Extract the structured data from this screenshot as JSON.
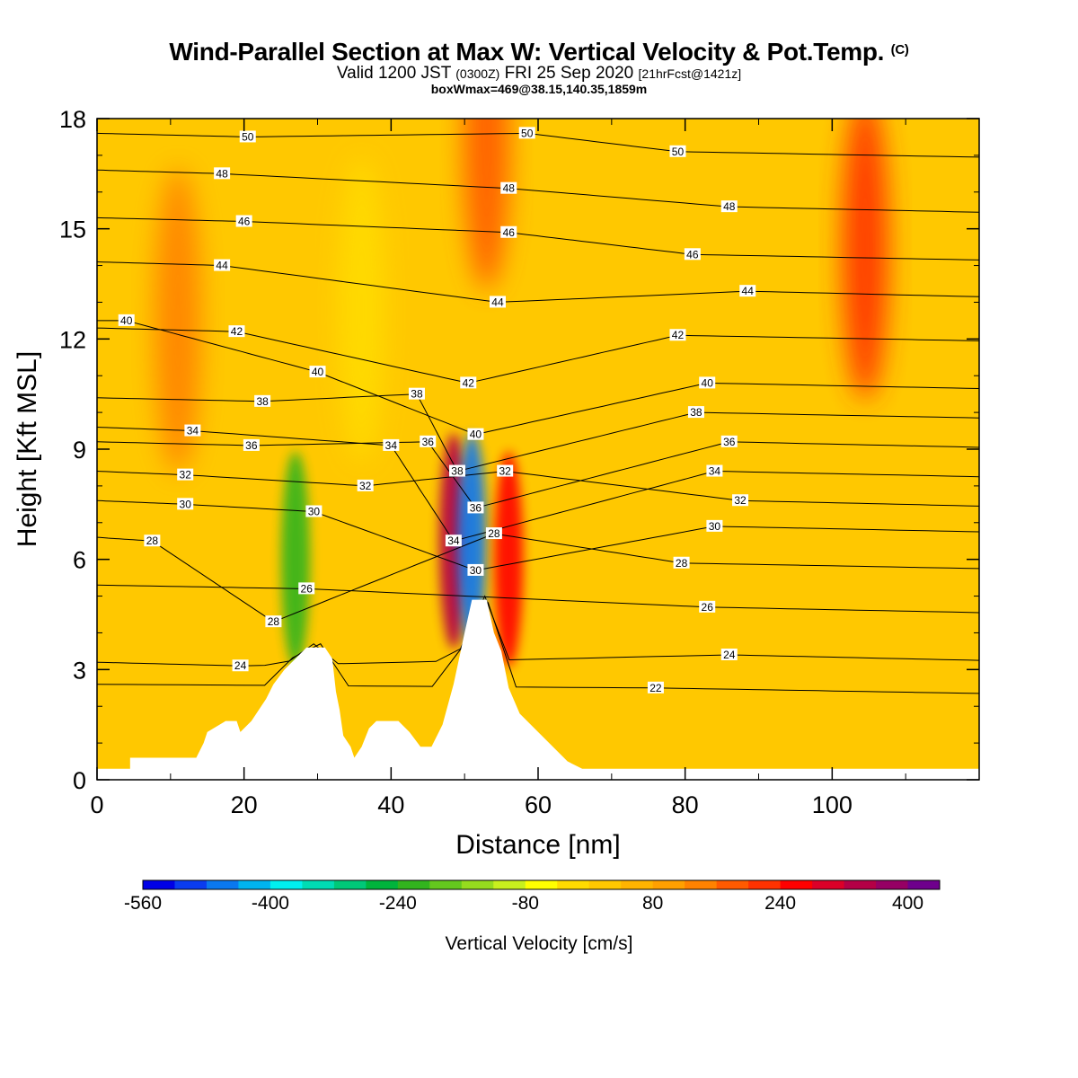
{
  "title": {
    "main": "Wind-Parallel Section at Max W: Vertical Velocity & Pot.Temp.",
    "copyright": "(C)",
    "valid_prefix": "Valid 1200 JST",
    "valid_z": "(0300Z)",
    "valid_date": "FRI 25 Sep 2020",
    "forecast": "[21hrFcst@1421z]",
    "box": "boxWmax=469@38.15,140.35,1859m"
  },
  "chart_data": {
    "type": "heatmap",
    "xlabel": "Distance [nm]",
    "ylabel": "Height [Kft MSL]",
    "xlim": [
      0,
      120
    ],
    "ylim": [
      0,
      18
    ],
    "x_ticks": [
      "0",
      "20",
      "40",
      "60",
      "80",
      "100"
    ],
    "y_ticks": [
      "0",
      "3",
      "6",
      "9",
      "12",
      "15",
      "18"
    ],
    "colorbar": {
      "label": "Vertical Velocity [cm/s]",
      "tick_labels": [
        "-560",
        "-400",
        "-240",
        "-80",
        "80",
        "240",
        "400"
      ],
      "levels": [
        -560,
        -520,
        -480,
        -440,
        -400,
        -360,
        -320,
        -280,
        -240,
        -200,
        -160,
        -120,
        -80,
        -40,
        0,
        40,
        80,
        120,
        160,
        200,
        240,
        280,
        320,
        360,
        400,
        440
      ],
      "colors": [
        "#0000e6",
        "#0a3cf0",
        "#0a78f0",
        "#00b4f0",
        "#00f0f0",
        "#00dcb4",
        "#00c878",
        "#00b43c",
        "#32b41e",
        "#64c81e",
        "#96dc1e",
        "#c8f01e",
        "#ffff00",
        "#ffdc00",
        "#ffc800",
        "#ffb400",
        "#ffa000",
        "#ff8200",
        "#ff5a00",
        "#ff3200",
        "#ff0000",
        "#dc0028",
        "#b40046",
        "#960064",
        "#6e008c"
      ]
    },
    "vertical_velocity_features": [
      {
        "x": 11,
        "y": 12.5,
        "w": 120
      },
      {
        "x": 27,
        "y": 6.0,
        "w": -240
      },
      {
        "x": 36,
        "y": 12.8,
        "w": -40
      },
      {
        "x": 48.5,
        "y": 6.5,
        "w": 320
      },
      {
        "x": 51,
        "y": 6.5,
        "w": -480
      },
      {
        "x": 56,
        "y": 6.0,
        "w": 240
      },
      {
        "x": 53,
        "y": 17.5,
        "w": 160
      },
      {
        "x": 104.5,
        "y": 14.5,
        "w": 200
      }
    ],
    "theta_series": [
      {
        "name": "22",
        "labels": [
          [
            76,
            2.5
          ]
        ]
      },
      {
        "name": "24",
        "labels": [
          [
            19.5,
            3.1
          ],
          [
            86,
            3.4
          ]
        ]
      },
      {
        "name": "26",
        "labels": [
          [
            28.5,
            5.2
          ],
          [
            83,
            4.7
          ]
        ]
      },
      {
        "name": "28",
        "labels": [
          [
            7.5,
            6.5
          ],
          [
            24,
            4.3
          ],
          [
            54,
            6.7
          ],
          [
            79.5,
            5.9
          ]
        ]
      },
      {
        "name": "30",
        "labels": [
          [
            12,
            7.5
          ],
          [
            29.5,
            7.3
          ],
          [
            51.5,
            5.7
          ],
          [
            84,
            6.9
          ]
        ]
      },
      {
        "name": "32",
        "labels": [
          [
            12,
            8.3
          ],
          [
            36.5,
            8.0
          ],
          [
            55.5,
            8.4
          ],
          [
            87.5,
            7.6
          ]
        ]
      },
      {
        "name": "34",
        "labels": [
          [
            13,
            9.5
          ],
          [
            40,
            9.1
          ],
          [
            48.5,
            6.5
          ],
          [
            84,
            8.4
          ]
        ]
      },
      {
        "name": "36",
        "labels": [
          [
            21,
            9.1
          ],
          [
            45,
            9.2
          ],
          [
            51.5,
            7.4
          ],
          [
            86,
            9.2
          ]
        ]
      },
      {
        "name": "38",
        "labels": [
          [
            22.5,
            10.3
          ],
          [
            43.5,
            10.5
          ],
          [
            49,
            8.4
          ],
          [
            81.5,
            10.0
          ]
        ]
      },
      {
        "name": "40",
        "labels": [
          [
            4,
            12.5
          ],
          [
            30,
            11.1
          ],
          [
            51.5,
            9.4
          ],
          [
            83,
            10.8
          ]
        ]
      },
      {
        "name": "42",
        "labels": [
          [
            19,
            12.2
          ],
          [
            50.5,
            10.8
          ],
          [
            79,
            12.1
          ]
        ]
      },
      {
        "name": "44",
        "labels": [
          [
            17,
            14.0
          ],
          [
            54.5,
            13.0
          ],
          [
            88.5,
            13.3
          ]
        ]
      },
      {
        "name": "46",
        "labels": [
          [
            20,
            15.2
          ],
          [
            56,
            14.9
          ],
          [
            81,
            14.3
          ]
        ]
      },
      {
        "name": "48",
        "labels": [
          [
            17,
            16.5
          ],
          [
            56,
            16.1
          ],
          [
            86,
            15.6
          ]
        ]
      },
      {
        "name": "50",
        "labels": [
          [
            20.5,
            17.5
          ],
          [
            58.5,
            17.6
          ],
          [
            79,
            17.1
          ]
        ]
      }
    ],
    "terrain_kft": [
      [
        0,
        0.3
      ],
      [
        4.5,
        0.3
      ],
      [
        4.5,
        0.6
      ],
      [
        13.5,
        0.6
      ],
      [
        14.5,
        1.0
      ],
      [
        15,
        1.3
      ],
      [
        17.5,
        1.6
      ],
      [
        19,
        1.6
      ],
      [
        19.5,
        1.3
      ],
      [
        21,
        1.6
      ],
      [
        23,
        2.2
      ],
      [
        24,
        2.6
      ],
      [
        25.5,
        3.0
      ],
      [
        27,
        3.3
      ],
      [
        28.5,
        3.6
      ],
      [
        31,
        3.6
      ],
      [
        32,
        3.3
      ],
      [
        32.5,
        2.4
      ],
      [
        33,
        1.9
      ],
      [
        33.5,
        1.2
      ],
      [
        34.5,
        0.9
      ],
      [
        35,
        0.6
      ],
      [
        36,
        0.9
      ],
      [
        37,
        1.4
      ],
      [
        38,
        1.6
      ],
      [
        41,
        1.6
      ],
      [
        42.5,
        1.3
      ],
      [
        44,
        0.9
      ],
      [
        45.5,
        0.9
      ],
      [
        47,
        1.5
      ],
      [
        48.5,
        2.6
      ],
      [
        50,
        4.0
      ],
      [
        51,
        4.9
      ],
      [
        53,
        4.9
      ],
      [
        54,
        4.0
      ],
      [
        55,
        3.5
      ],
      [
        56,
        2.5
      ],
      [
        57.5,
        1.8
      ],
      [
        59.5,
        1.4
      ],
      [
        61,
        1.1
      ],
      [
        62.5,
        0.8
      ],
      [
        64,
        0.5
      ],
      [
        66,
        0.3
      ],
      [
        120,
        0.3
      ]
    ]
  }
}
